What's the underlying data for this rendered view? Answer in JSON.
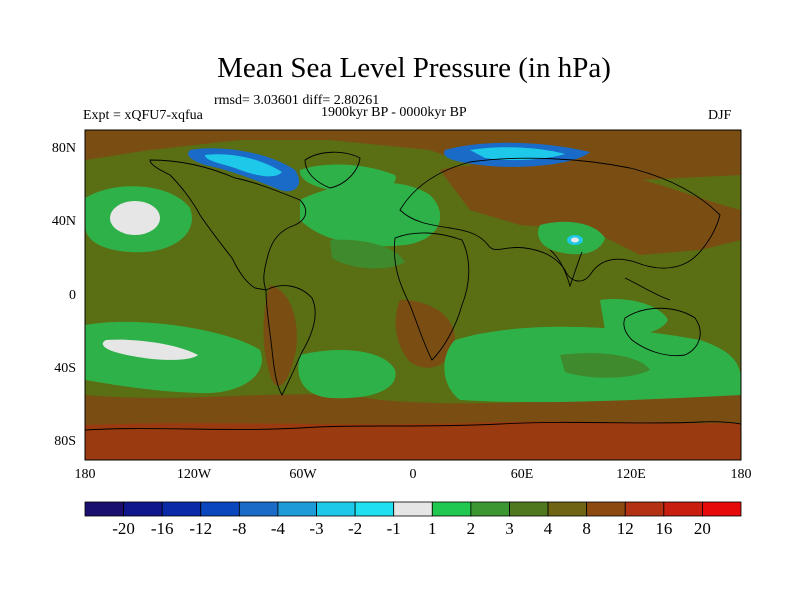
{
  "title": "Mean Sea Level Pressure (in hPa)",
  "stats": "rmsd= 3.03601 diff= 2.80261",
  "experiment": "Expt = xQFU7-xqfua",
  "period": "1900kyr BP - 0000kyr BP",
  "season": "DJF",
  "x_ticks": [
    "180",
    "120W",
    "60W",
    "0",
    "60E",
    "120E",
    "180"
  ],
  "y_ticks": [
    "80N",
    "40N",
    "0",
    "40S",
    "80S"
  ],
  "colorbar": {
    "labels": [
      "-20",
      "-16",
      "-12",
      "-8",
      "-4",
      "-3",
      "-2",
      "-1",
      "1",
      "2",
      "3",
      "4",
      "8",
      "12",
      "16",
      "20"
    ],
    "colors": [
      "#1a0f6e",
      "#10168c",
      "#0a2aa8",
      "#0a46be",
      "#1a6ac8",
      "#1d9ad8",
      "#1ec8e8",
      "#20e0f0",
      "#e6e6e6",
      "#20c850",
      "#3c9632",
      "#50781e",
      "#6e6414",
      "#8c4a10",
      "#b43214",
      "#c81e10",
      "#e60a0a"
    ]
  },
  "map_colors": {
    "background": "#5a6e14",
    "green": "#2fb14a",
    "dark_green": "#3f8a2c",
    "brown": "#7a4d12",
    "red_brown": "#9a3a10",
    "blue": "#1a6ac8",
    "cyan": "#1ec8e8",
    "white": "#e6e6e6"
  }
}
